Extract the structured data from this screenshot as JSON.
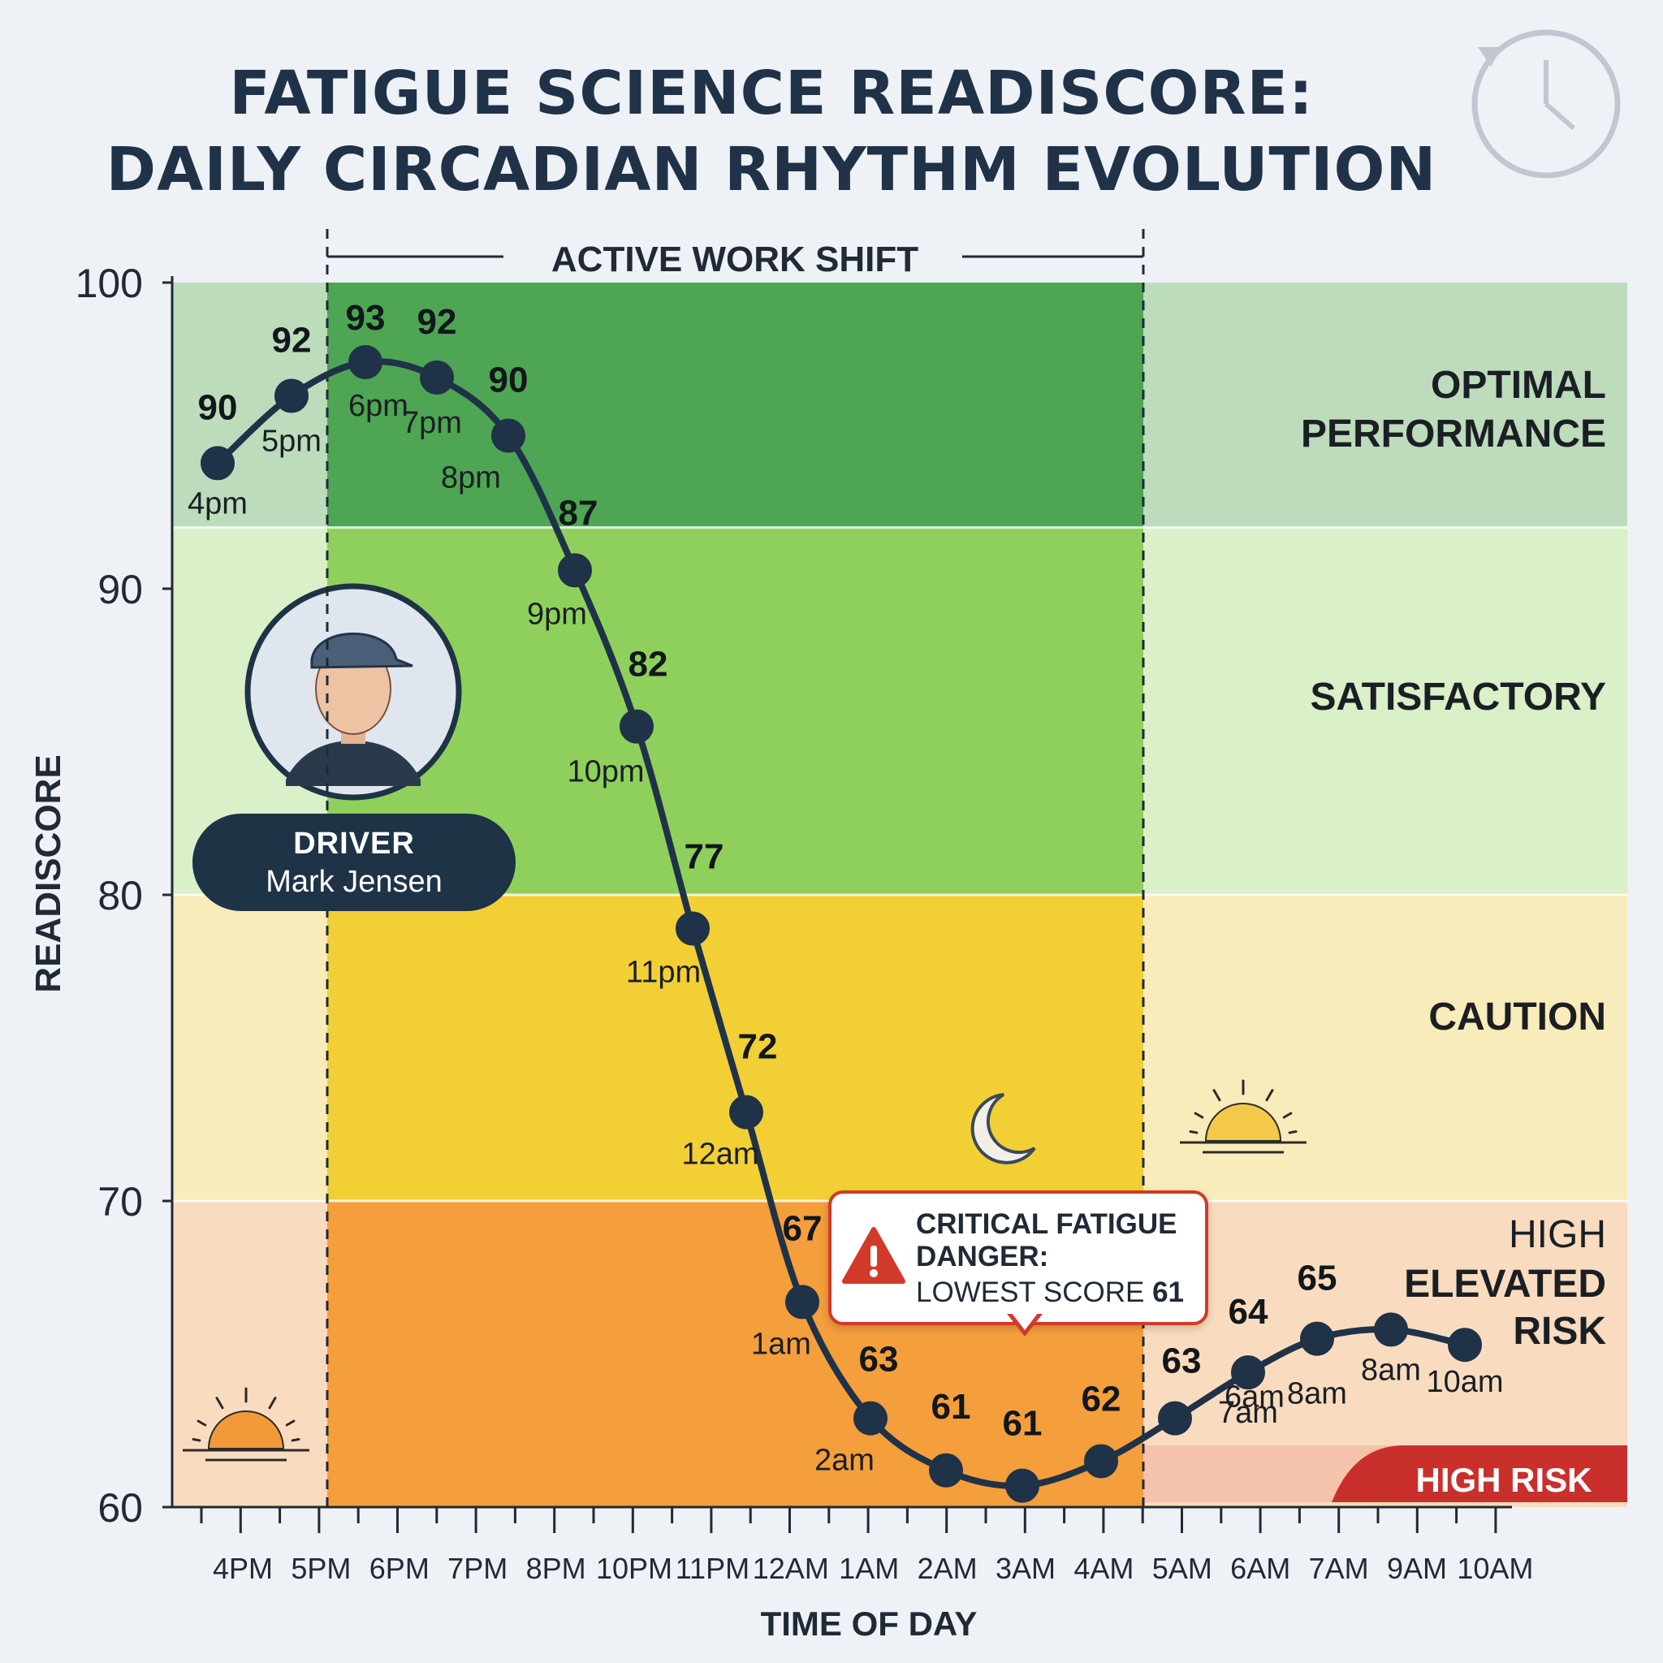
{
  "title_lines": [
    "FATIGUE SCIENCE READISCORE:",
    "DAILY CIRCADIAN RHYTHM EVOLUTION"
  ],
  "chart_data": {
    "type": "line",
    "title": "FATIGUE SCIENCE READISCORE: DAILY CIRCADIAN RHYTHM EVOLUTION",
    "xlabel": "TIME OF DAY",
    "ylabel": "READISCORE",
    "ylim": [
      60,
      100
    ],
    "yticks": [
      60,
      70,
      80,
      90,
      100
    ],
    "xticks": [
      "4PM",
      "5PM",
      "6PM",
      "7PM",
      "8PM",
      "10PM",
      "11PM",
      "12AM",
      "1AM",
      "2AM",
      "3AM",
      "4AM",
      "5AM",
      "6AM",
      "7AM",
      "9AM",
      "10AM"
    ],
    "points": [
      {
        "label": "4pm",
        "value": 90,
        "y": 94.1
      },
      {
        "label": "5pm",
        "value": 92,
        "y": 96.3
      },
      {
        "label": "6pm",
        "value": 93,
        "y": 97.4
      },
      {
        "label": "7pm",
        "value": 92,
        "y": 96.9
      },
      {
        "label": "8pm",
        "value": 90,
        "y": 95.0
      },
      {
        "label": "9pm",
        "value": 87,
        "y": 90.6
      },
      {
        "label": "10pm",
        "value": 82,
        "y": 85.5
      },
      {
        "label": "11pm",
        "value": 77,
        "y": 78.9
      },
      {
        "label": "12am",
        "value": 72,
        "y": 72.9
      },
      {
        "label": "1am",
        "value": 67,
        "y": 66.7
      },
      {
        "label": "2am",
        "value": 63,
        "y": 62.9
      },
      {
        "label": "",
        "value": 61,
        "y": 61.2
      },
      {
        "label": "",
        "value": 61,
        "y": 60.7
      },
      {
        "label": "",
        "value": 62,
        "y": 61.5
      },
      {
        "label": "6am",
        "value": 63,
        "y": 62.9
      },
      {
        "label": "7am",
        "value": 64,
        "y": 64.4
      },
      {
        "label": "8am",
        "value": 65,
        "y": 65.5
      },
      {
        "label": "8am",
        "value": 65,
        "y": 65.8
      },
      {
        "label": "10am",
        "value": 65,
        "y": 65.3
      }
    ],
    "zones": [
      {
        "name": [
          "OPTIMAL",
          "PERFORMANCE"
        ],
        "from": 92,
        "to": 100,
        "color": "#4ea553",
        "light_color": "#bcdcbc"
      },
      {
        "name": [
          "SATISFACTORY"
        ],
        "from": 80,
        "to": 92,
        "color": "#8fd05c",
        "light_color": "#d9f0c8"
      },
      {
        "name": [
          "CAUTION"
        ],
        "from": 70,
        "to": 80,
        "color": "#f3cf36",
        "light_color": "#f8ecbb"
      },
      {
        "name": [
          "HIGH",
          "ELEVATED",
          "RISK"
        ],
        "from": 60,
        "to": 70,
        "color": "#f49e3c",
        "light_color": "#f9dcbf"
      }
    ],
    "shift_label": "ACTIVE WORK SHIFT",
    "high_risk_label": "HIGH RISK",
    "line_color": "#1f3247"
  },
  "driver": {
    "role": "DRIVER",
    "name": "Mark Jensen"
  },
  "callout": {
    "line1": "CRITICAL FATIGUE",
    "line2": "DANGER:",
    "line3_text": "LOWEST SCORE ",
    "line3_value": "61"
  },
  "icons": [
    "clock-icon",
    "sun-icon",
    "moon-icon",
    "warning-icon",
    "driver-avatar-icon"
  ]
}
